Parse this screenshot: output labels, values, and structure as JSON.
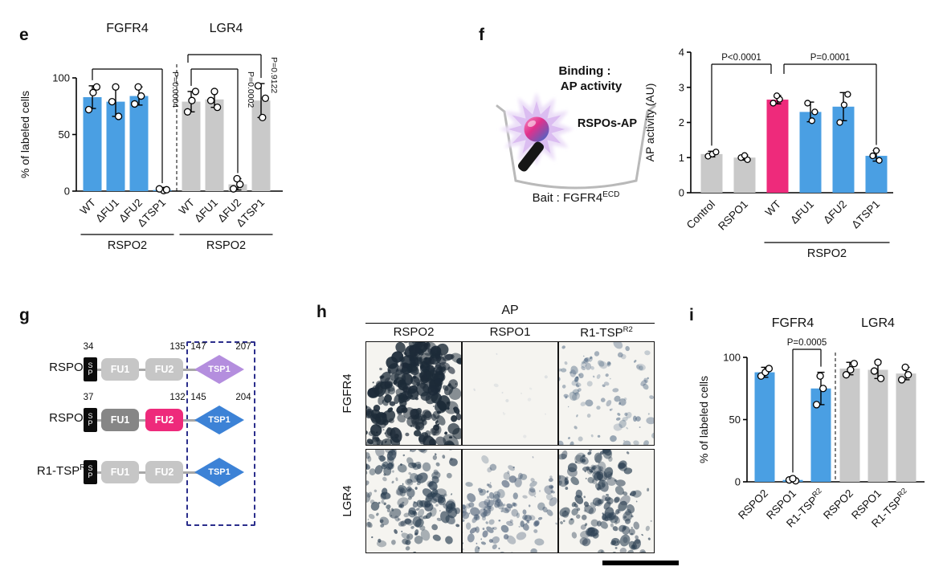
{
  "colors": {
    "blue_bar": "#4a9fe3",
    "gray_bar": "#c9c9c9",
    "magenta_bar": "#ee2a7b",
    "fgfr4_title_blue": "#3d9ae8",
    "lgr4_title_gray": "#9c9c9c",
    "binding_text_purple": "#8d3f98",
    "rspos_ap_blue": "#2b90d9",
    "tsp1_purple": "#b48ede",
    "tsp1_blue": "#3c82d6",
    "dashed_box_navy": "#2b2e8c"
  },
  "panels": {
    "e": {
      "label": "e"
    },
    "f": {
      "label": "f",
      "schematic": {
        "binding_line1": "Binding :",
        "binding_line2": "AP activity",
        "probe_label": "RSPOs-AP",
        "bait_prefix": "Bait : FGFR4",
        "bait_sup": "ECD"
      }
    },
    "g": {
      "label": "g",
      "rows": [
        {
          "name": "RSPO1",
          "name_sup": "",
          "sp_top": "S",
          "sp_bottom": "P",
          "fu1": "FU1",
          "fu2": "FU2",
          "tsp": "TSP1",
          "fu1_color": "#c6c6c6",
          "fu2_color": "#c6c6c6",
          "tsp_color": "#b48ede",
          "num_start": "34",
          "num_fu_end": "135",
          "num_tsp_start": "147",
          "num_tsp_end": "207"
        },
        {
          "name": "RSPO2",
          "name_sup": "",
          "sp_top": "S",
          "sp_bottom": "P",
          "fu1": "FU1",
          "fu2": "FU2",
          "tsp": "TSP1",
          "fu1_color": "#868686",
          "fu2_color": "#ee2a7b",
          "tsp_color": "#3c82d6",
          "num_start": "37",
          "num_fu_end": "132",
          "num_tsp_start": "145",
          "num_tsp_end": "204"
        },
        {
          "name": "R1-TSP",
          "name_sup": "R2",
          "sp_top": "S",
          "sp_bottom": "P",
          "fu1": "FU1",
          "fu2": "FU2",
          "tsp": "TSP1",
          "fu1_color": "#c6c6c6",
          "fu2_color": "#c6c6c6",
          "tsp_color": "#3c82d6",
          "num_start": "",
          "num_fu_end": "",
          "num_tsp_start": "",
          "num_tsp_end": ""
        }
      ]
    },
    "h": {
      "label": "h",
      "title": "AP",
      "col_headers": [
        {
          "text": "RSPO2",
          "sup": ""
        },
        {
          "text": "RSPO1",
          "sup": ""
        },
        {
          "text": "R1-TSP",
          "sup": "R2"
        }
      ],
      "row_headers": [
        "FGFR4",
        "LGR4"
      ],
      "staining_density": [
        [
          "dense",
          "blank",
          "sparse"
        ],
        [
          "medium",
          "medium-light",
          "medium"
        ]
      ],
      "has_scale_bar": true
    },
    "i": {
      "label": "i"
    }
  },
  "chart_data": [
    {
      "id": "chart-e",
      "panel": "e",
      "type": "bar",
      "ylabel": "% of labeled cells",
      "ylim": [
        0,
        100
      ],
      "yticks": [
        0,
        50,
        100
      ],
      "groups": [
        {
          "title": "FGFR4",
          "title_color": "#3d9ae8",
          "underline_label": "RSPO2",
          "bars": [
            {
              "label": "WT",
              "value": 83,
              "err": 10,
              "points": [
                72,
                87,
                92
              ],
              "color": "#4a9fe3"
            },
            {
              "label": "ΔFU1",
              "value": 79,
              "err": 13,
              "points": [
                66,
                79,
                92
              ],
              "color": "#4a9fe3"
            },
            {
              "label": "ΔFU2",
              "value": 84,
              "err": 8,
              "points": [
                77,
                84,
                92
              ],
              "color": "#4a9fe3"
            },
            {
              "label": "ΔTSP1",
              "value": 1,
              "err": 1,
              "points": [
                0.5,
                1.2,
                2
              ],
              "color": "#4a9fe3"
            }
          ]
        },
        {
          "title": "LGR4",
          "title_color": "#9c9c9c",
          "underline_label": "RSPO2",
          "bars": [
            {
              "label": "WT",
              "value": 79,
              "err": 9,
              "points": [
                70,
                80,
                88
              ],
              "color": "#c9c9c9"
            },
            {
              "label": "ΔFU1",
              "value": 81,
              "err": 7,
              "points": [
                74,
                80,
                88
              ],
              "color": "#c9c9c9"
            },
            {
              "label": "ΔFU2",
              "value": 6,
              "err": 5,
              "points": [
                2,
                6,
                11
              ],
              "color": "#c9c9c9"
            },
            {
              "label": "ΔTSP1",
              "value": 80,
              "err": 15,
              "points": [
                65,
                82,
                93
              ],
              "color": "#c9c9c9"
            }
          ]
        }
      ],
      "annotations": [
        {
          "text": "P=0.0004",
          "from": [
            0,
            0
          ],
          "to": [
            0,
            3
          ],
          "level": 1,
          "rotated": true
        },
        {
          "text": "P=0.0002",
          "from": [
            1,
            0
          ],
          "to": [
            1,
            2
          ],
          "level": 1,
          "rotated": true
        },
        {
          "text": "P=0.9122",
          "from": [
            1,
            0
          ],
          "to": [
            1,
            3
          ],
          "level": 2,
          "rotated": true,
          "from_dx": -4,
          "from_drop_y": 58
        }
      ],
      "divider_between_groups": true
    },
    {
      "id": "chart-f",
      "panel": "f",
      "type": "bar",
      "ylabel": "AP activity (AU)",
      "ylim": [
        0,
        4
      ],
      "yticks": [
        0,
        1,
        2,
        3,
        4
      ],
      "groups": [
        {
          "title": "",
          "underline_label": "RSPO2",
          "underline_from": 2,
          "underline_to": 5,
          "bars": [
            {
              "label": "Control",
              "value": 1.1,
              "err": 0.08,
              "points": [
                1.04,
                1.1,
                1.16
              ],
              "color": "#c9c9c9"
            },
            {
              "label": "RSPO1",
              "value": 1.0,
              "err": 0.07,
              "points": [
                0.94,
                1.0,
                1.06
              ],
              "color": "#c9c9c9"
            },
            {
              "label": "WT",
              "value": 2.65,
              "err": 0.12,
              "points": [
                2.55,
                2.66,
                2.76
              ],
              "color": "#ee2a7b"
            },
            {
              "label": "ΔFU1",
              "value": 2.3,
              "err": 0.28,
              "points": [
                2.05,
                2.3,
                2.55
              ],
              "color": "#4a9fe3"
            },
            {
              "label": "ΔFU2",
              "value": 2.45,
              "err": 0.4,
              "points": [
                2.0,
                2.5,
                2.8
              ],
              "color": "#4a9fe3"
            },
            {
              "label": "ΔTSP1",
              "value": 1.05,
              "err": 0.15,
              "points": [
                0.92,
                1.05,
                1.2
              ],
              "color": "#4a9fe3"
            }
          ]
        }
      ],
      "annotations": [
        {
          "text": "P<0.0001",
          "from": [
            0,
            0
          ],
          "to": [
            0,
            2
          ],
          "level": 1,
          "rotated": false,
          "to_dx": -8,
          "to_drop_y": 52
        },
        {
          "text": "P=0.0001",
          "from": [
            0,
            2
          ],
          "to": [
            0,
            5
          ],
          "level": 1,
          "rotated": false,
          "from_dx": 8,
          "from_drop_y": 52
        }
      ]
    },
    {
      "id": "chart-i",
      "panel": "i",
      "type": "bar",
      "ylabel": "% of labeled cells",
      "ylim": [
        0,
        100
      ],
      "yticks": [
        0,
        50,
        100
      ],
      "groups": [
        {
          "title": "FGFR4",
          "title_color": "#3d9ae8",
          "bars": [
            {
              "label": "RSPO2",
              "value": 88,
              "err": 4,
              "points": [
                85,
                88,
                91
              ],
              "color": "#4a9fe3"
            },
            {
              "label": "RSPO1",
              "value": 1.5,
              "err": 1.5,
              "points": [
                0.8,
                1.5,
                2.6
              ],
              "color": "#4a9fe3"
            },
            {
              "label": "R1-TSP^R2",
              "value": 75,
              "err": 13,
              "points": [
                62,
                75,
                85
              ],
              "color": "#4a9fe3"
            }
          ]
        },
        {
          "title": "LGR4",
          "title_color": "#9c9c9c",
          "bars": [
            {
              "label": "RSPO2",
              "value": 91,
              "err": 5,
              "points": [
                86,
                90,
                95
              ],
              "color": "#c9c9c9"
            },
            {
              "label": "RSPO1",
              "value": 90,
              "err": 7,
              "points": [
                83,
                89,
                96
              ],
              "color": "#c9c9c9"
            },
            {
              "label": "R1-TSP^R2",
              "value": 87,
              "err": 5,
              "points": [
                82,
                86,
                92
              ],
              "color": "#c9c9c9"
            }
          ]
        }
      ],
      "annotations": [
        {
          "text": "P=0.0005",
          "from": [
            0,
            1
          ],
          "to": [
            0,
            2
          ],
          "level": 1,
          "rotated": false
        }
      ],
      "divider_between_groups": true
    }
  ]
}
